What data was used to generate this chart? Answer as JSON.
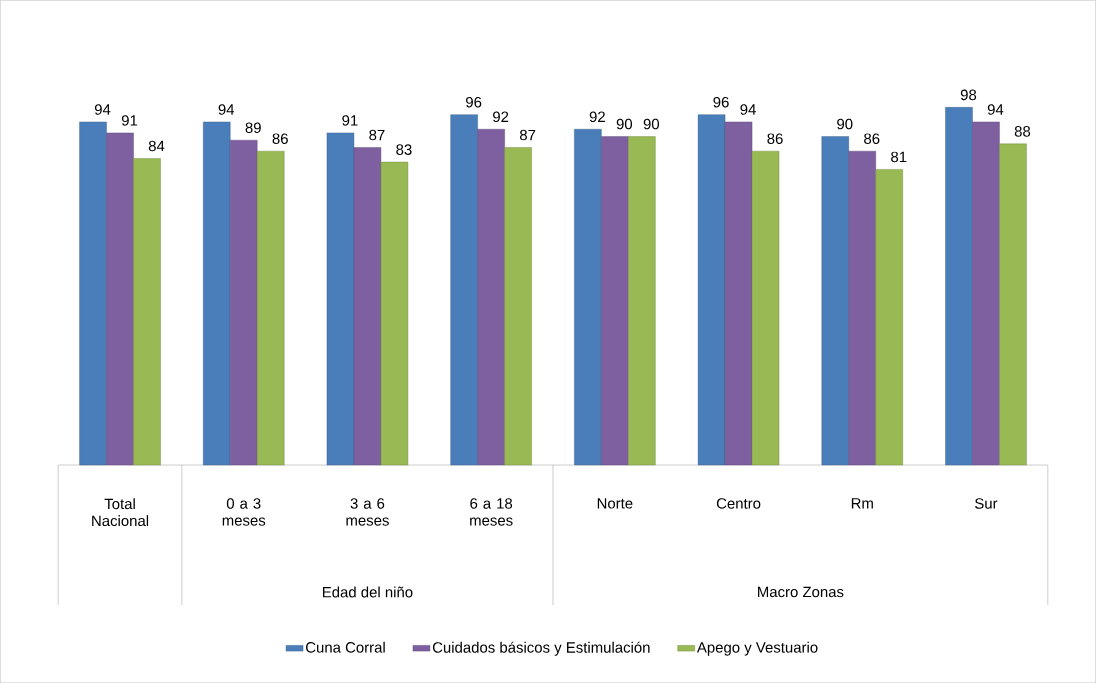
{
  "chart_data": {
    "type": "bar",
    "categories": [
      "Total Nacional",
      "0 a 3 meses",
      "3 a 6 meses",
      "6 a 18 meses",
      "Norte",
      "Centro",
      "Rm",
      "Sur"
    ],
    "series": [
      {
        "name": "Cuna Corral",
        "color": "#4a7ebb",
        "values": [
          94,
          94,
          91,
          96,
          92,
          96,
          90,
          98
        ]
      },
      {
        "name": "Cuidados básicos y Estimulación",
        "color": "#7e60a0",
        "values": [
          91,
          89,
          87,
          92,
          90,
          94,
          86,
          94
        ]
      },
      {
        "name": "Apego y Vestuario",
        "color": "#98b954",
        "values": [
          84,
          86,
          83,
          87,
          90,
          86,
          81,
          88
        ]
      }
    ],
    "annotations": [
      "Edad del niño",
      "Macro Zonas"
    ],
    "data_labels": true,
    "legend": "bottom"
  }
}
